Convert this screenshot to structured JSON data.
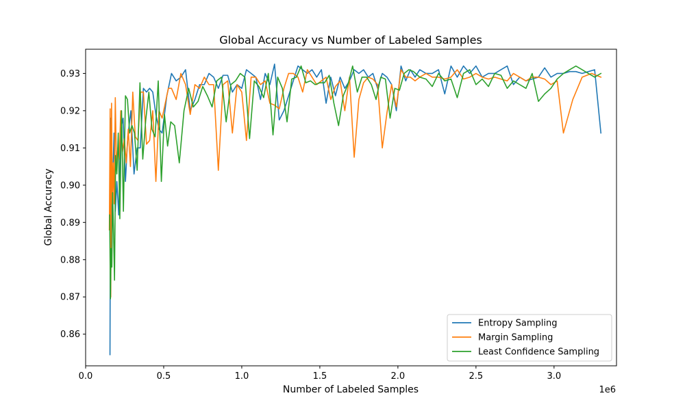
{
  "chart_data": {
    "type": "line",
    "title": "Global Accuracy vs Number of Labeled Samples",
    "xlabel": "Number of Labeled Samples",
    "ylabel": "Global Accuracy",
    "x_offset_label": "1e6",
    "xlim": [
      0,
      3.4
    ],
    "ylim": [
      0.8515,
      0.9365
    ],
    "x_ticks": [
      0.0,
      0.5,
      1.0,
      1.5,
      2.0,
      2.5,
      3.0
    ],
    "x_tick_labels": [
      "0.0",
      "0.5",
      "1.0",
      "1.5",
      "2.0",
      "2.5",
      "3.0"
    ],
    "y_ticks": [
      0.86,
      0.87,
      0.88,
      0.89,
      0.9,
      0.91,
      0.92,
      0.93
    ],
    "y_tick_labels": [
      "0.86",
      "0.87",
      "0.88",
      "0.89",
      "0.90",
      "0.91",
      "0.92",
      "0.93"
    ],
    "grid": false,
    "legend_position": "lower-right",
    "series": [
      {
        "name": "Entropy Sampling",
        "color": "#1f77b4",
        "x": [
          0.156,
          0.16,
          0.165,
          0.17,
          0.176,
          0.182,
          0.19,
          0.2,
          0.212,
          0.225,
          0.24,
          0.255,
          0.27,
          0.29,
          0.31,
          0.33,
          0.35,
          0.37,
          0.39,
          0.41,
          0.43,
          0.45,
          0.47,
          0.49,
          0.52,
          0.55,
          0.58,
          0.61,
          0.64,
          0.67,
          0.7,
          0.73,
          0.76,
          0.79,
          0.82,
          0.85,
          0.88,
          0.91,
          0.94,
          0.97,
          1.0,
          1.03,
          1.06,
          1.09,
          1.12,
          1.15,
          1.18,
          1.21,
          1.24,
          1.27,
          1.3,
          1.33,
          1.36,
          1.39,
          1.42,
          1.45,
          1.48,
          1.51,
          1.54,
          1.57,
          1.6,
          1.63,
          1.66,
          1.69,
          1.72,
          1.75,
          1.78,
          1.81,
          1.84,
          1.87,
          1.9,
          1.93,
          1.96,
          1.99,
          2.02,
          2.05,
          2.08,
          2.11,
          2.14,
          2.18,
          2.22,
          2.26,
          2.3,
          2.34,
          2.38,
          2.42,
          2.46,
          2.5,
          2.54,
          2.58,
          2.62,
          2.66,
          2.7,
          2.74,
          2.78,
          2.82,
          2.86,
          2.9,
          2.94,
          2.98,
          3.02,
          3.06,
          3.1,
          3.14,
          3.18,
          3.22,
          3.26,
          3.3
        ],
        "y": [
          0.8545,
          0.918,
          0.88,
          0.895,
          0.905,
          0.914,
          0.893,
          0.901,
          0.892,
          0.915,
          0.918,
          0.901,
          0.913,
          0.92,
          0.903,
          0.91,
          0.91,
          0.926,
          0.925,
          0.926,
          0.925,
          0.919,
          0.915,
          0.914,
          0.924,
          0.93,
          0.928,
          0.929,
          0.931,
          0.92,
          0.923,
          0.927,
          0.927,
          0.93,
          0.929,
          0.926,
          0.9295,
          0.9295,
          0.925,
          0.927,
          0.926,
          0.931,
          0.93,
          0.929,
          0.923,
          0.93,
          0.927,
          0.9325,
          0.9175,
          0.92,
          0.924,
          0.928,
          0.932,
          0.931,
          0.93,
          0.931,
          0.929,
          0.931,
          0.922,
          0.929,
          0.924,
          0.929,
          0.926,
          0.928,
          0.931,
          0.93,
          0.931,
          0.929,
          0.93,
          0.926,
          0.93,
          0.929,
          0.927,
          0.92,
          0.932,
          0.928,
          0.931,
          0.929,
          0.931,
          0.93,
          0.93,
          0.931,
          0.9245,
          0.932,
          0.929,
          0.932,
          0.93,
          0.932,
          0.929,
          0.93,
          0.93,
          0.931,
          0.932,
          0.927,
          0.929,
          0.928,
          0.9285,
          0.929,
          0.9315,
          0.929,
          0.93,
          0.93,
          0.9305,
          0.9305,
          0.93,
          0.9305,
          0.931,
          0.914
        ]
      },
      {
        "name": "Margin Sampling",
        "color": "#ff7f0e",
        "x": [
          0.152,
          0.157,
          0.161,
          0.166,
          0.171,
          0.177,
          0.183,
          0.19,
          0.198,
          0.206,
          0.215,
          0.225,
          0.236,
          0.248,
          0.26,
          0.273,
          0.287,
          0.302,
          0.318,
          0.335,
          0.352,
          0.37,
          0.39,
          0.41,
          0.43,
          0.45,
          0.47,
          0.49,
          0.51,
          0.53,
          0.55,
          0.58,
          0.61,
          0.64,
          0.67,
          0.7,
          0.73,
          0.76,
          0.79,
          0.82,
          0.85,
          0.88,
          0.91,
          0.94,
          0.97,
          1.0,
          1.03,
          1.06,
          1.09,
          1.12,
          1.15,
          1.18,
          1.21,
          1.24,
          1.27,
          1.3,
          1.33,
          1.36,
          1.39,
          1.42,
          1.45,
          1.48,
          1.51,
          1.54,
          1.57,
          1.6,
          1.63,
          1.66,
          1.69,
          1.72,
          1.75,
          1.78,
          1.81,
          1.84,
          1.87,
          1.9,
          1.93,
          1.96,
          1.99,
          2.02,
          2.05,
          2.08,
          2.11,
          2.14,
          2.18,
          2.22,
          2.26,
          2.3,
          2.34,
          2.38,
          2.42,
          2.46,
          2.5,
          2.54,
          2.58,
          2.62,
          2.66,
          2.7,
          2.74,
          2.78,
          2.82,
          2.86,
          2.9,
          2.94,
          2.98,
          3.02,
          3.06,
          3.12,
          3.18,
          3.24,
          3.3
        ],
        "y": [
          0.888,
          0.9205,
          0.87,
          0.922,
          0.895,
          0.906,
          0.895,
          0.9235,
          0.904,
          0.91,
          0.907,
          0.92,
          0.909,
          0.9125,
          0.906,
          0.915,
          0.905,
          0.925,
          0.913,
          0.912,
          0.925,
          0.925,
          0.911,
          0.912,
          0.92,
          0.901,
          0.92,
          0.918,
          0.922,
          0.926,
          0.926,
          0.923,
          0.93,
          0.927,
          0.919,
          0.927,
          0.926,
          0.929,
          0.927,
          0.927,
          0.904,
          0.927,
          0.928,
          0.914,
          0.927,
          0.925,
          0.912,
          0.929,
          0.929,
          0.927,
          0.928,
          0.922,
          0.9215,
          0.9205,
          0.926,
          0.93,
          0.93,
          0.929,
          0.925,
          0.931,
          0.929,
          0.927,
          0.928,
          0.929,
          0.923,
          0.9265,
          0.928,
          0.92,
          0.929,
          0.9075,
          0.923,
          0.9275,
          0.929,
          0.9285,
          0.927,
          0.91,
          0.9195,
          0.927,
          0.921,
          0.931,
          0.929,
          0.929,
          0.928,
          0.929,
          0.93,
          0.929,
          0.929,
          0.9285,
          0.929,
          0.931,
          0.9285,
          0.929,
          0.93,
          0.929,
          0.9285,
          0.929,
          0.9285,
          0.928,
          0.93,
          0.929,
          0.928,
          0.929,
          0.929,
          0.9285,
          0.927,
          0.928,
          0.914,
          0.923,
          0.929,
          0.93,
          0.929
        ]
      },
      {
        "name": "Least Confidence Sampling",
        "color": "#2ca02c",
        "x": [
          0.154,
          0.159,
          0.163,
          0.168,
          0.173,
          0.179,
          0.185,
          0.192,
          0.2,
          0.209,
          0.219,
          0.23,
          0.242,
          0.255,
          0.268,
          0.282,
          0.297,
          0.313,
          0.33,
          0.348,
          0.366,
          0.385,
          0.405,
          0.425,
          0.445,
          0.465,
          0.485,
          0.505,
          0.525,
          0.545,
          0.57,
          0.6,
          0.63,
          0.66,
          0.69,
          0.72,
          0.75,
          0.78,
          0.81,
          0.84,
          0.87,
          0.9,
          0.93,
          0.96,
          0.99,
          1.02,
          1.05,
          1.08,
          1.11,
          1.14,
          1.17,
          1.2,
          1.23,
          1.26,
          1.29,
          1.32,
          1.35,
          1.38,
          1.41,
          1.44,
          1.47,
          1.5,
          1.53,
          1.56,
          1.59,
          1.62,
          1.65,
          1.68,
          1.71,
          1.74,
          1.77,
          1.8,
          1.83,
          1.86,
          1.89,
          1.92,
          1.95,
          1.98,
          2.01,
          2.04,
          2.07,
          2.1,
          2.14,
          2.18,
          2.22,
          2.26,
          2.3,
          2.34,
          2.38,
          2.42,
          2.46,
          2.5,
          2.54,
          2.58,
          2.62,
          2.66,
          2.7,
          2.74,
          2.78,
          2.82,
          2.86,
          2.9,
          2.94,
          2.98,
          3.02,
          3.06,
          3.1,
          3.14,
          3.18,
          3.22,
          3.26,
          3.3
        ],
        "y": [
          0.892,
          0.8695,
          0.883,
          0.878,
          0.898,
          0.887,
          0.8745,
          0.908,
          0.903,
          0.914,
          0.891,
          0.92,
          0.893,
          0.924,
          0.923,
          0.914,
          0.916,
          0.914,
          0.904,
          0.9275,
          0.907,
          0.9175,
          0.925,
          0.915,
          0.913,
          0.928,
          0.901,
          0.919,
          0.9105,
          0.917,
          0.916,
          0.906,
          0.92,
          0.926,
          0.921,
          0.9225,
          0.9265,
          0.924,
          0.921,
          0.928,
          0.929,
          0.917,
          0.927,
          0.928,
          0.93,
          0.929,
          0.9125,
          0.928,
          0.9265,
          0.9235,
          0.93,
          0.9135,
          0.929,
          0.926,
          0.917,
          0.9285,
          0.929,
          0.932,
          0.9275,
          0.928,
          0.927,
          0.9275,
          0.9275,
          0.9295,
          0.922,
          0.916,
          0.924,
          0.927,
          0.932,
          0.925,
          0.929,
          0.929,
          0.927,
          0.923,
          0.929,
          0.9285,
          0.918,
          0.926,
          0.9255,
          0.93,
          0.931,
          0.9305,
          0.929,
          0.9285,
          0.9265,
          0.93,
          0.928,
          0.9285,
          0.9235,
          0.93,
          0.931,
          0.927,
          0.9285,
          0.9265,
          0.93,
          0.9295,
          0.926,
          0.928,
          0.927,
          0.926,
          0.93,
          0.9225,
          0.9245,
          0.926,
          0.9285,
          0.93,
          0.931,
          0.932,
          0.931,
          0.93,
          0.929,
          0.93
        ]
      }
    ]
  }
}
